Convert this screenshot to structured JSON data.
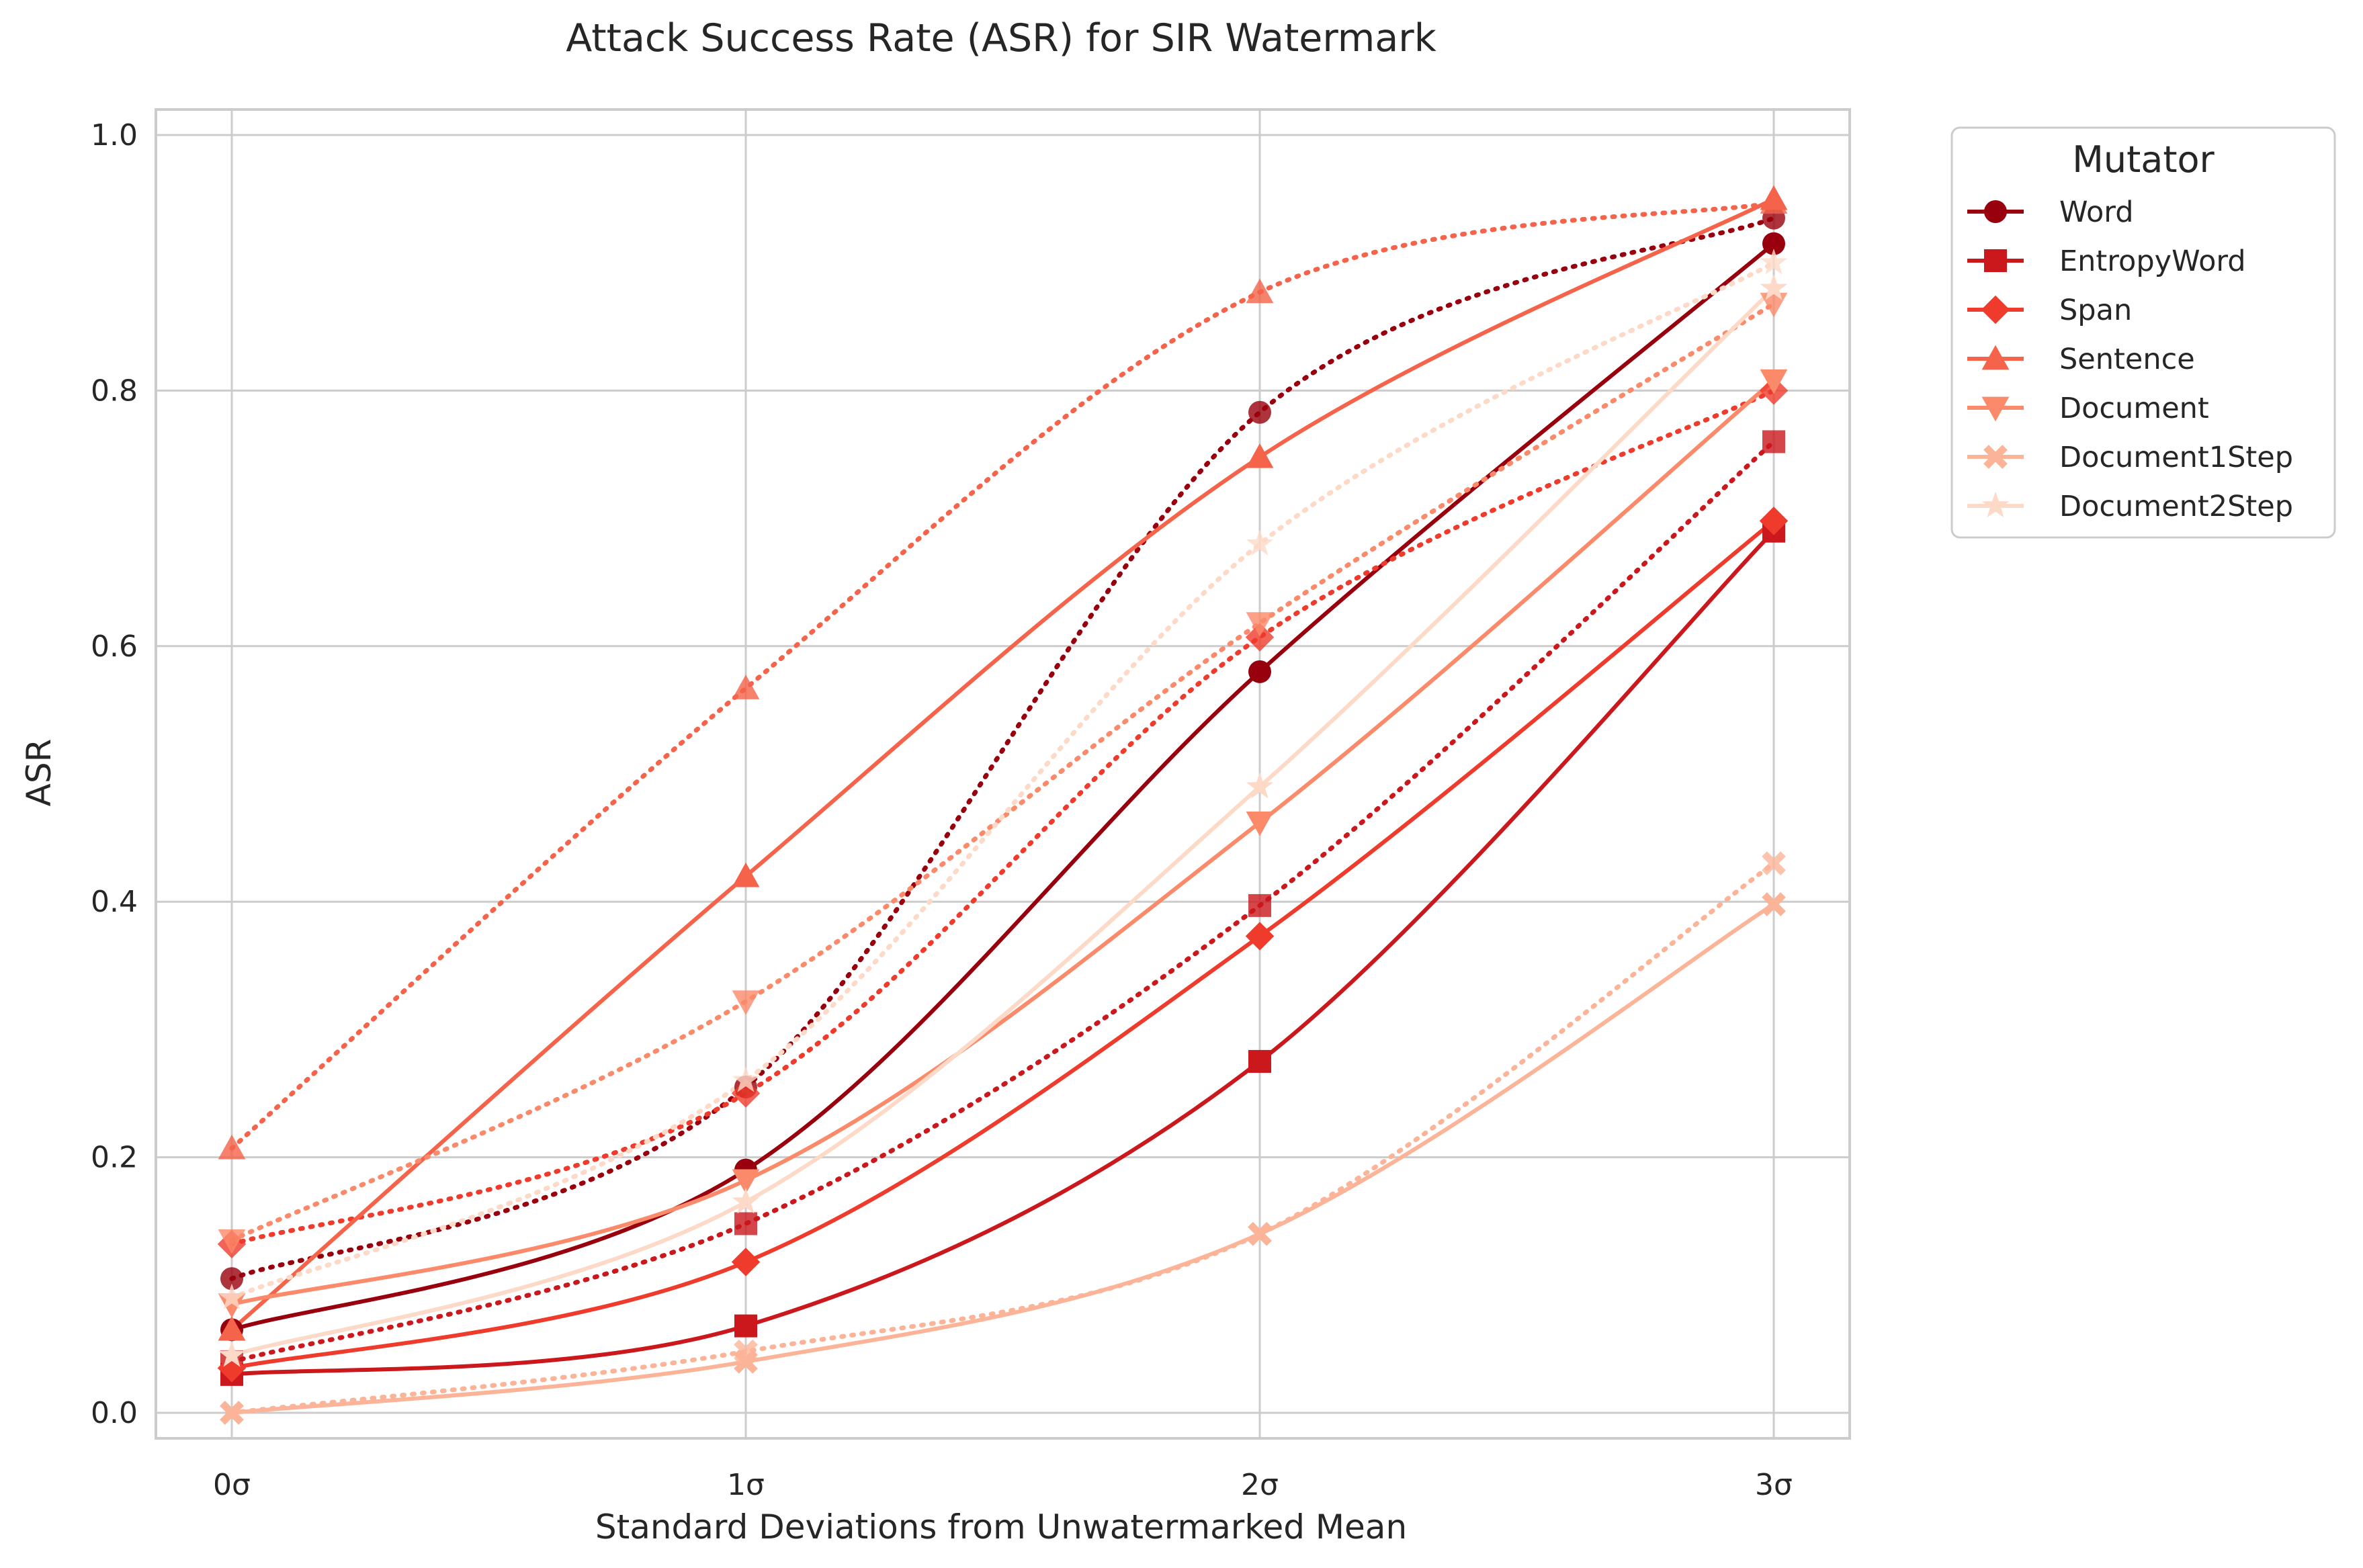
{
  "chart_data": {
    "type": "line",
    "title": "Attack Success Rate (ASR) for SIR Watermark",
    "xlabel": "Standard Deviations from Unwatermarked Mean",
    "ylabel": "ASR",
    "categories": [
      "0σ",
      "1σ",
      "2σ",
      "3σ"
    ],
    "x": [
      0,
      1,
      2,
      3
    ],
    "ylim": [
      -0.02,
      1.02
    ],
    "yticks": [
      "0.0",
      "0.2",
      "0.4",
      "0.6",
      "0.8",
      "1.0"
    ],
    "ytick_values": [
      0.0,
      0.2,
      0.4,
      0.6,
      0.8,
      1.0
    ],
    "grid": true,
    "legend": {
      "title": "Mutator",
      "placement": "outside top-right"
    },
    "line_styles": {
      "solid": "fitted curve",
      "dotted": "second variant"
    },
    "series": [
      {
        "name": "Word",
        "color": "#99000d",
        "marker": "circle",
        "values": [
          0.065,
          0.19,
          0.58,
          0.915
        ],
        "dotted_values": [
          0.105,
          0.255,
          0.783,
          0.935
        ]
      },
      {
        "name": "EntropyWord",
        "color": "#cb181d",
        "marker": "square",
        "values": [
          0.03,
          0.068,
          0.275,
          0.69
        ],
        "dotted_values": [
          0.04,
          0.148,
          0.397,
          0.76
        ]
      },
      {
        "name": "Span",
        "color": "#ef3b2c",
        "marker": "diamond",
        "values": [
          0.035,
          0.118,
          0.373,
          0.698
        ],
        "dotted_values": [
          0.132,
          0.25,
          0.607,
          0.8
        ]
      },
      {
        "name": "Sentence",
        "color": "#f4634a",
        "marker": "triangle-up",
        "values": [
          0.065,
          0.42,
          0.748,
          0.95
        ],
        "dotted_values": [
          0.207,
          0.567,
          0.877,
          0.947
        ]
      },
      {
        "name": "Document",
        "color": "#fb8a6a",
        "marker": "triangle-down",
        "values": [
          0.085,
          0.182,
          0.462,
          0.808
        ],
        "dotted_values": [
          0.135,
          0.322,
          0.618,
          0.868
        ]
      },
      {
        "name": "Document1Step",
        "color": "#fcb499",
        "marker": "x",
        "values": [
          0.0,
          0.04,
          0.14,
          0.398
        ],
        "dotted_values": [
          0.0,
          0.048,
          0.14,
          0.43
        ]
      },
      {
        "name": "Document2Step",
        "color": "#fdd9c8",
        "marker": "star",
        "values": [
          0.045,
          0.165,
          0.49,
          0.88
        ],
        "dotted_values": [
          0.09,
          0.26,
          0.68,
          0.9
        ]
      }
    ]
  }
}
